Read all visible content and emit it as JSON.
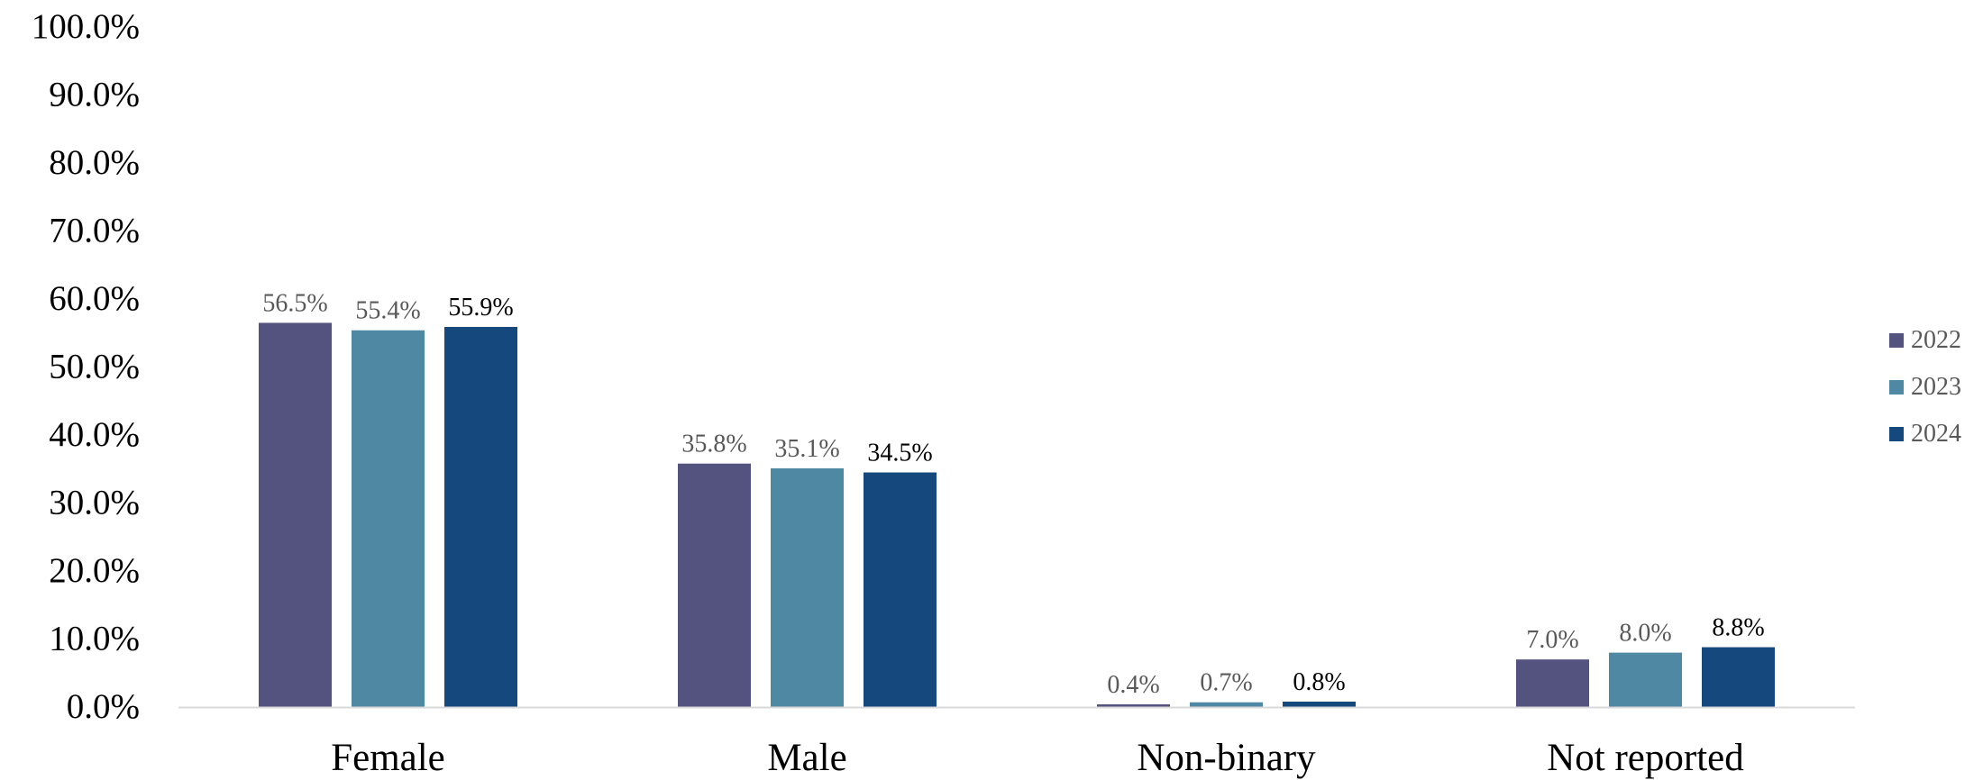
{
  "chart_data": {
    "type": "bar",
    "categories": [
      "Female",
      "Male",
      "Non-binary",
      "Not reported"
    ],
    "series": [
      {
        "name": "2022",
        "values": [
          56.5,
          35.8,
          0.4,
          7.0
        ],
        "labels": [
          "56.5%",
          "35.8%",
          "0.4%",
          "7.0%"
        ],
        "color": "#54527f"
      },
      {
        "name": "2023",
        "values": [
          55.4,
          35.1,
          0.7,
          8.0
        ],
        "labels": [
          "55.4%",
          "35.1%",
          "0.7%",
          "8.0%"
        ],
        "color": "#4e88a3"
      },
      {
        "name": "2024",
        "values": [
          55.9,
          34.5,
          0.8,
          8.8
        ],
        "labels": [
          "55.9%",
          "34.5%",
          "0.8%",
          "8.8%"
        ],
        "color": "#15497e"
      }
    ],
    "y_ticks": [
      "0.0%",
      "10.0%",
      "20.0%",
      "30.0%",
      "40.0%",
      "50.0%",
      "60.0%",
      "70.0%",
      "80.0%",
      "90.0%",
      "100.0%"
    ],
    "ylim": [
      0,
      100
    ],
    "grid": false,
    "legend_position": "right",
    "colors": {
      "axis_line": "#d9d9d9",
      "tick_text": "#000000",
      "label_text": "#595959",
      "label_text_dark": "#000000"
    }
  }
}
